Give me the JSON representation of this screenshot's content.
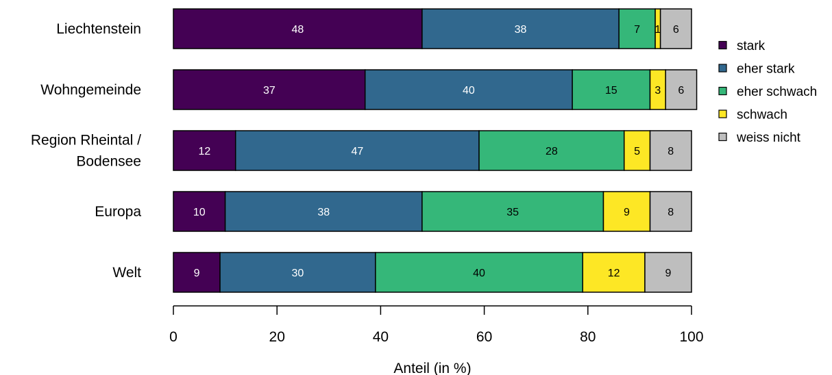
{
  "chart_data": {
    "type": "bar",
    "orientation": "horizontal",
    "stacked": true,
    "categories": [
      "Liechtenstein",
      "Wohngemeinde",
      "Region Rheintal / Bodensee",
      "Europa",
      "Welt"
    ],
    "category_lines": [
      [
        "Liechtenstein"
      ],
      [
        "Wohngemeinde"
      ],
      [
        "Region Rheintal /",
        "Bodensee"
      ],
      [
        "Europa"
      ],
      [
        "Welt"
      ]
    ],
    "series": [
      {
        "name": "stark",
        "color": "#440154",
        "label_color": "#ffffff",
        "values": [
          48,
          37,
          12,
          10,
          9
        ],
        "labels": [
          "48",
          "37",
          "12",
          "10",
          "9"
        ]
      },
      {
        "name": "eher stark",
        "color": "#31688e",
        "label_color": "#ffffff",
        "values": [
          38,
          40,
          47,
          38,
          30
        ],
        "labels": [
          "38",
          "40",
          "47",
          "38",
          "30"
        ]
      },
      {
        "name": "eher schwach",
        "color": "#35b779",
        "label_color": "#000000",
        "values": [
          7,
          15,
          28,
          35,
          40
        ],
        "labels": [
          "7",
          "15",
          "28",
          "35",
          "40"
        ]
      },
      {
        "name": "schwach",
        "color": "#fde725",
        "label_color": "#000000",
        "values": [
          1,
          3,
          5,
          9,
          12
        ],
        "labels": [
          "1",
          "3",
          "5",
          "9",
          "12"
        ]
      },
      {
        "name": "weiss nicht",
        "color": "#bebebe",
        "label_color": "#000000",
        "values": [
          6,
          6,
          8,
          8,
          9
        ],
        "labels": [
          "6",
          "6",
          "8",
          "8",
          "9"
        ]
      }
    ],
    "xlim": [
      0,
      100
    ],
    "xticks": [
      0,
      20,
      40,
      60,
      80,
      100
    ],
    "xtick_labels": [
      "0",
      "20",
      "40",
      "60",
      "80",
      "100"
    ],
    "xlabel": "Anteil (in %)",
    "legend_position": "right",
    "grid": false
  }
}
